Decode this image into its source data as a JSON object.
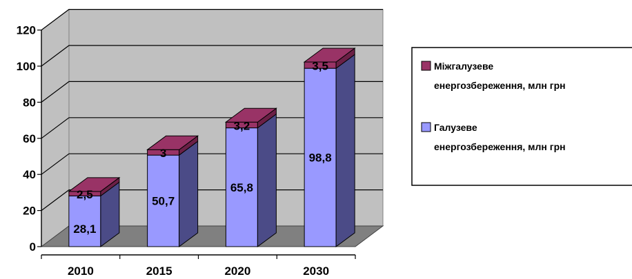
{
  "chart_data": {
    "type": "bar",
    "stacked": true,
    "three_d": true,
    "categories": [
      "2010",
      "2015",
      "2020",
      "2030"
    ],
    "series": [
      {
        "name": "Галузеве енергозбереження, млн грн",
        "values": [
          28.1,
          50.7,
          65.8,
          98.8
        ],
        "labels": [
          "28,1",
          "50,7",
          "65,8",
          "98,8"
        ],
        "color": "#9999FF",
        "side_color": "#4B4B87"
      },
      {
        "name": "Міжгалузеве енергозбереження, млн грн",
        "values": [
          2.5,
          3,
          3.2,
          3.5
        ],
        "labels": [
          "2,5",
          "3",
          "3,2",
          "3,5"
        ],
        "color": "#993366",
        "side_color": "#6B2046"
      }
    ],
    "y_ticks": [
      "0",
      "20",
      "40",
      "60",
      "80",
      "100",
      "120"
    ],
    "ylim": [
      0,
      120
    ],
    "grid": true,
    "legend_position": "right",
    "legend": [
      {
        "line1": "Міжгалузеве",
        "line2": "енергозбереження, млн грн",
        "color": "#993366"
      },
      {
        "line1": "Галузеве",
        "line2": "енергозбереження, млн грн",
        "color": "#9999FF"
      }
    ],
    "colors": {
      "wall": "#C0C0C0",
      "floor": "#808080",
      "grid": "#000000"
    }
  }
}
